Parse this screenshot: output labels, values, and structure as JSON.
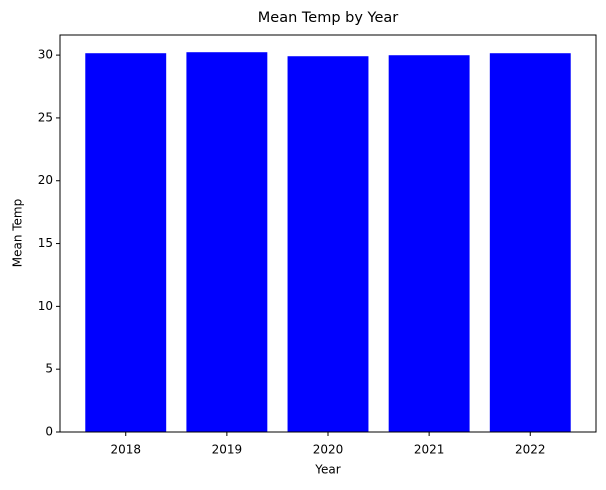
{
  "chart_data": {
    "type": "bar",
    "title": "Mean Temp by Year",
    "x_label": "Year",
    "y_label": "Mean Temp",
    "categories": [
      "2018",
      "2019",
      "2020",
      "2021",
      "2022"
    ],
    "values": [
      30.15,
      30.23,
      29.91,
      29.99,
      30.15
    ],
    "color": "#0000ff",
    "ylim": [
      0,
      31.6
    ],
    "yticks": [
      0,
      5,
      10,
      15,
      20,
      25,
      30
    ],
    "grid": false
  }
}
